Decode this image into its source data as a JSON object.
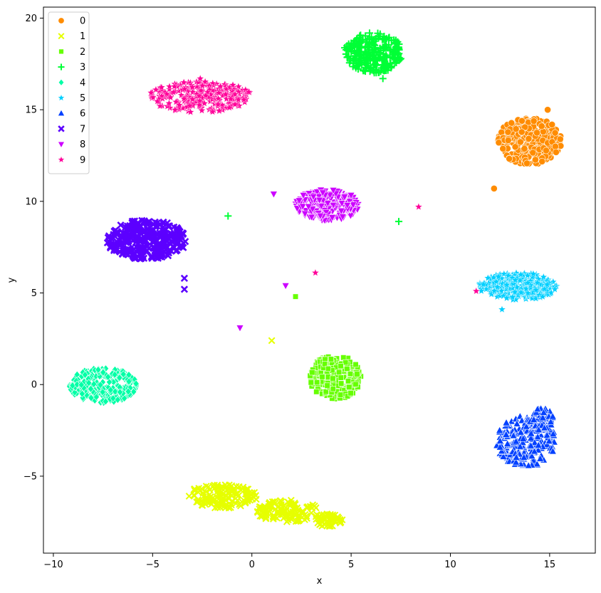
{
  "chart_data": {
    "type": "scatter",
    "xlabel": "x",
    "ylabel": "y",
    "xlim": [
      -10.5,
      17.3
    ],
    "ylim": [
      -9.2,
      20.6
    ],
    "xticks": [
      -10,
      -5,
      0,
      5,
      10,
      15
    ],
    "yticks": [
      -5,
      0,
      5,
      10,
      15,
      20
    ],
    "grid": false,
    "legend": {
      "placement": "top-left",
      "entries": [
        "0",
        "1",
        "2",
        "3",
        "4",
        "5",
        "6",
        "7",
        "8",
        "9"
      ]
    },
    "series": [
      {
        "name": "0",
        "color": "#ff8c00",
        "marker": "circle",
        "clusters": [
          {
            "cx": 14.0,
            "cy": 13.3,
            "rx": 1.6,
            "ry": 1.3,
            "n": 320
          }
        ],
        "points": [
          [
            12.2,
            10.7
          ],
          [
            14.9,
            15.0
          ]
        ]
      },
      {
        "name": "1",
        "color": "#e6ff00",
        "marker": "x",
        "clusters": [
          {
            "cx": -1.5,
            "cy": -6.1,
            "rx": 1.8,
            "ry": 0.65,
            "n": 140
          },
          {
            "cx": 1.8,
            "cy": -6.9,
            "rx": 1.6,
            "ry": 0.6,
            "n": 120
          },
          {
            "cx": 3.8,
            "cy": -7.4,
            "rx": 0.8,
            "ry": 0.35,
            "n": 50
          }
        ],
        "points": [
          [
            1.0,
            2.4
          ]
        ]
      },
      {
        "name": "2",
        "color": "#66ff00",
        "marker": "square",
        "clusters": [
          {
            "cx": 4.2,
            "cy": 0.4,
            "rx": 1.3,
            "ry": 1.2,
            "n": 260
          }
        ],
        "points": [
          [
            2.2,
            4.8
          ]
        ]
      },
      {
        "name": "3",
        "color": "#00ff36",
        "marker": "plus",
        "clusters": [
          {
            "cx": 6.1,
            "cy": 18.1,
            "rx": 1.5,
            "ry": 1.1,
            "n": 260
          }
        ],
        "points": [
          [
            -1.2,
            9.2
          ],
          [
            7.4,
            8.9
          ],
          [
            6.6,
            16.7
          ]
        ]
      },
      {
        "name": "4",
        "color": "#00ffa6",
        "marker": "diamond",
        "clusters": [
          {
            "cx": -7.5,
            "cy": -0.05,
            "rx": 1.7,
            "ry": 0.95,
            "n": 260
          }
        ],
        "points": []
      },
      {
        "name": "5",
        "color": "#00cfff",
        "marker": "star",
        "clusters": [
          {
            "cx": 13.4,
            "cy": 5.35,
            "rx": 2.0,
            "ry": 0.75,
            "n": 280
          }
        ],
        "points": [
          [
            12.6,
            4.1
          ]
        ]
      },
      {
        "name": "6",
        "color": "#0040ff",
        "marker": "triangle-up",
        "clusters": [
          {
            "cx": 13.8,
            "cy": -3.1,
            "rx": 1.5,
            "ry": 1.4,
            "n": 220
          },
          {
            "cx": 14.6,
            "cy": -1.9,
            "rx": 0.6,
            "ry": 0.6,
            "n": 60
          }
        ],
        "points": []
      },
      {
        "name": "7",
        "color": "#5c00ff",
        "marker": "x-thick",
        "clusters": [
          {
            "cx": -5.3,
            "cy": 7.9,
            "rx": 2.0,
            "ry": 1.1,
            "n": 280
          }
        ],
        "points": [
          [
            -3.4,
            5.8
          ],
          [
            -3.4,
            5.2
          ]
        ]
      },
      {
        "name": "8",
        "color": "#cc00ff",
        "marker": "triangle-down",
        "clusters": [
          {
            "cx": 3.8,
            "cy": 9.8,
            "rx": 1.6,
            "ry": 0.85,
            "n": 260
          }
        ],
        "points": [
          [
            1.1,
            10.4
          ],
          [
            1.7,
            5.4
          ],
          [
            -0.6,
            3.1
          ]
        ]
      },
      {
        "name": "9",
        "color": "#ff0099",
        "marker": "star",
        "clusters": [
          {
            "cx": -2.6,
            "cy": 15.7,
            "rx": 2.6,
            "ry": 0.85,
            "n": 280
          }
        ],
        "points": [
          [
            3.2,
            6.1
          ],
          [
            8.4,
            9.7
          ],
          [
            -2.6,
            16.7
          ],
          [
            11.3,
            5.1
          ]
        ]
      }
    ]
  }
}
